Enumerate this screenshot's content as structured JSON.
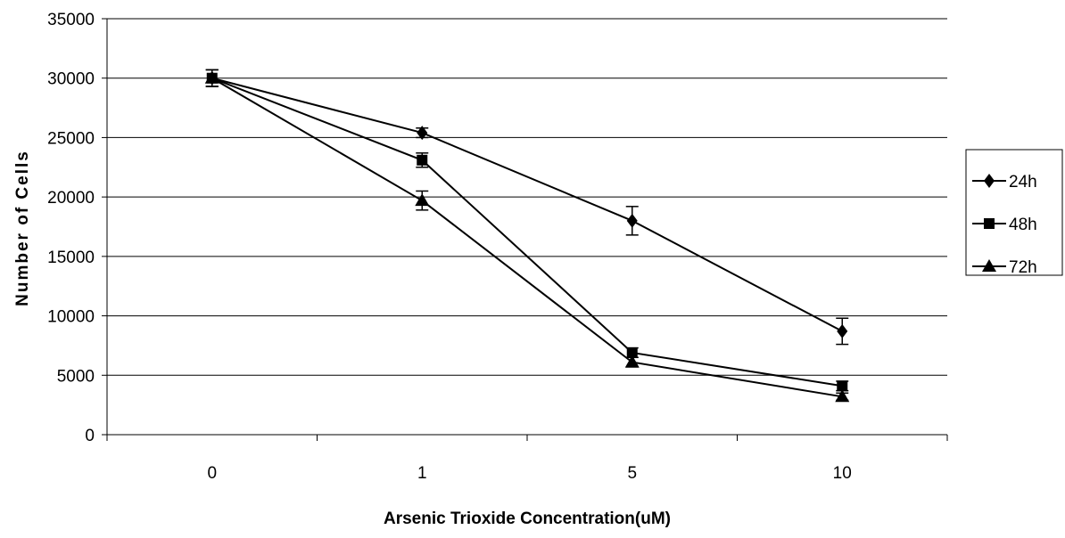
{
  "chart_data": {
    "type": "line",
    "title": "",
    "xlabel": "Arsenic Trioxide Concentration(uM)",
    "ylabel": "Number of Cells",
    "categories": [
      "0",
      "1",
      "5",
      "10"
    ],
    "ylim": [
      0,
      35000
    ],
    "yticks": [
      0,
      5000,
      10000,
      15000,
      20000,
      25000,
      30000,
      35000
    ],
    "grid": "horizontal",
    "legend_position": "right",
    "series": [
      {
        "name": "24h",
        "marker": "diamond",
        "color": "#000000",
        "values": [
          30000,
          25400,
          18000,
          8700
        ],
        "errors": [
          700,
          400,
          1200,
          1100
        ]
      },
      {
        "name": "48h",
        "marker": "square",
        "color": "#000000",
        "values": [
          30000,
          23100,
          6900,
          4100
        ],
        "errors": [
          700,
          600,
          400,
          400
        ]
      },
      {
        "name": "72h",
        "marker": "triangle",
        "color": "#000000",
        "values": [
          30000,
          19700,
          6100,
          3200
        ],
        "errors": [
          700,
          800,
          400,
          300
        ]
      }
    ]
  }
}
